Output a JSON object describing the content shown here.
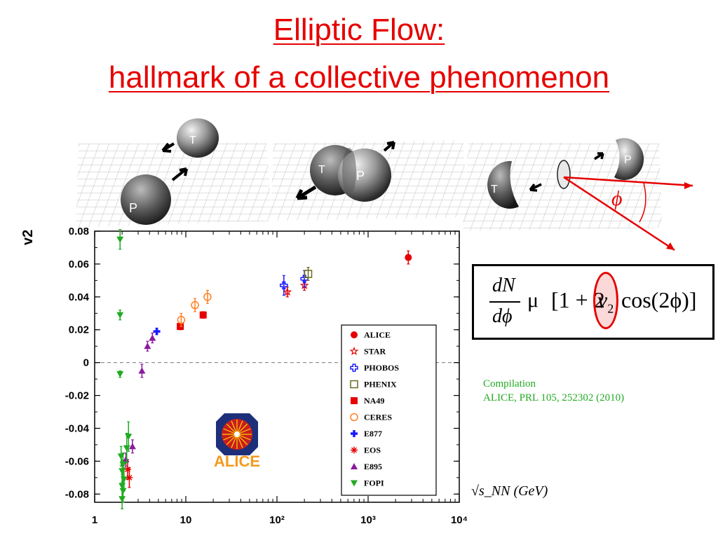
{
  "title": {
    "line1": "Elliptic Flow:",
    "line2": "hallmark of a collective phenomenon"
  },
  "diagram": {
    "label_T": "T",
    "label_P": "P",
    "phi": "ϕ"
  },
  "formula": {
    "lhs_num": "dN",
    "lhs_den": "dϕ",
    "prop": "μ",
    "rhs": "[1 + 2",
    "v": "v",
    "sub": "2",
    "cos": "cos(2ϕ)]"
  },
  "compilation": {
    "line1": "Compilation",
    "line2": "ALICE, PRL 105, 252302 (2010)"
  },
  "x_axis_label": "√s_NN (GeV)",
  "logo_text": "ALICE",
  "colors": {
    "title": "#e60000",
    "ALICE": "#e60000",
    "STAR": "#e60000",
    "PHOBOS": "#1a1aff",
    "PHENIX": "#6b6b20",
    "NA49": "#e60000",
    "CERES": "#ff7f24",
    "E877": "#1a1aff",
    "EOS": "#e60000",
    "E895": "#8b1a9e",
    "FOPI": "#22aa22",
    "compilation": "#22aa22"
  },
  "chart_data": {
    "type": "scatter",
    "title": "",
    "xlabel": "√s_NN (GeV)",
    "ylabel": "v2",
    "xscale": "log",
    "xlim": [
      1,
      10000
    ],
    "ylim": [
      -0.085,
      0.08
    ],
    "x_tick_labels": [
      "1",
      "10",
      "10²",
      "10³",
      "10⁴"
    ],
    "y_tick_labels": [
      "0.08",
      "0.06",
      "0.04",
      "0.02",
      "0",
      "-0.02",
      "-0.04",
      "-0.06",
      "-0.08"
    ],
    "y_ticks": [
      0.08,
      0.06,
      0.04,
      0.02,
      0,
      -0.02,
      -0.04,
      -0.06,
      -0.08
    ],
    "x_ticks": [
      1,
      10,
      100,
      1000,
      10000
    ],
    "zero_line": "dashed",
    "legend_position": "bottom-right",
    "series": [
      {
        "name": "ALICE",
        "marker": "circle-filled",
        "points": [
          [
            2760,
            0.064,
            0.004
          ]
        ]
      },
      {
        "name": "STAR",
        "marker": "star-open",
        "points": [
          [
            130,
            0.043,
            0.003
          ],
          [
            200,
            0.047,
            0.003
          ]
        ]
      },
      {
        "name": "PHOBOS",
        "marker": "cross-open",
        "points": [
          [
            119,
            0.047,
            0.006
          ],
          [
            200,
            0.051,
            0.005
          ]
        ]
      },
      {
        "name": "PHENIX",
        "marker": "square-open",
        "points": [
          [
            220,
            0.054,
            0.004
          ]
        ]
      },
      {
        "name": "NA49",
        "marker": "square-filled",
        "points": [
          [
            8.7,
            0.022,
            0.002
          ],
          [
            15.5,
            0.029,
            0.002
          ]
        ]
      },
      {
        "name": "CERES",
        "marker": "circle-open",
        "points": [
          [
            8.9,
            0.026,
            0.004
          ],
          [
            12.6,
            0.035,
            0.004
          ],
          [
            17.3,
            0.04,
            0.004
          ]
        ]
      },
      {
        "name": "E877",
        "marker": "plus-filled",
        "points": [
          [
            4.8,
            0.019,
            0.002
          ]
        ]
      },
      {
        "name": "EOS",
        "marker": "asterisk",
        "points": [
          [
            2.3,
            -0.065,
            0.006
          ],
          [
            2.4,
            -0.07,
            0.006
          ]
        ]
      },
      {
        "name": "E895",
        "marker": "triangle-up",
        "points": [
          [
            2.2,
            -0.059,
            0.004
          ],
          [
            2.6,
            -0.051,
            0.004
          ],
          [
            3.3,
            -0.005,
            0.004
          ],
          [
            3.8,
            0.01,
            0.003
          ],
          [
            4.3,
            0.015,
            0.003
          ]
        ]
      },
      {
        "name": "FOPI",
        "marker": "triangle-down",
        "points": [
          [
            1.9,
            0.075,
            0.006
          ],
          [
            1.9,
            0.029,
            0.003
          ],
          [
            1.9,
            -0.007,
            0.002
          ],
          [
            1.95,
            -0.057,
            0.006
          ],
          [
            2.05,
            -0.062,
            0.007
          ],
          [
            2.0,
            -0.066,
            0.007
          ],
          [
            2.1,
            -0.071,
            0.007
          ],
          [
            2.0,
            -0.075,
            0.007
          ],
          [
            2.05,
            -0.078,
            0.007
          ],
          [
            2.0,
            -0.083,
            0.006
          ],
          [
            2.25,
            -0.052,
            0.009
          ],
          [
            2.35,
            -0.045,
            0.009
          ]
        ]
      }
    ]
  }
}
